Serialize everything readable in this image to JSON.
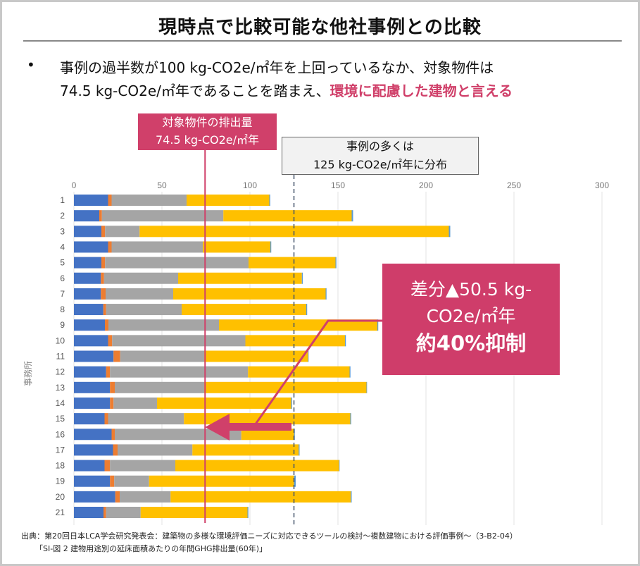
{
  "slide": {
    "title": "現時点で比較可能な他社事例との比較",
    "bullet_symbol": "•",
    "bullet_line1": "事例の過半数が100 kg-CO2e/㎡年を上回っているなか、対象物件は",
    "bullet_line2_plain": "74.5 kg-CO2e/㎡年であることを踏まえ、",
    "bullet_line2_highlight": "環境に配慮した建物と言える",
    "target_label_line1": "対象物件の排出量",
    "target_label_line2": "74.5 kg-CO2e/㎡年",
    "cases_label_line1": "事例の多くは",
    "cases_label_line2": "125 kg-CO2e/㎡年に分布",
    "diff_line1": "差分▲50.5 kg-",
    "diff_line2": "CO2e/㎡年",
    "diff_line3": "約40%抑制",
    "source_line1": "出典：第20回日本LCA学会研究発表会：建築物の多様な環境評価ニーズに対応できるツールの検討～複数建物における評価事例～（3-B2-04）",
    "source_line2": "「SI-図 2 建物用途別の延床面積あたりの年間GHG排出量(60年)」",
    "accent_color": "#d0406a"
  },
  "chart_data": {
    "type": "bar",
    "orientation": "horizontal",
    "stacked": true,
    "ylabel": "事務所",
    "xlim": [
      0,
      300
    ],
    "xticks": [
      0,
      50,
      100,
      150,
      200,
      250,
      300
    ],
    "grid": true,
    "categories": [
      "1",
      "2",
      "3",
      "4",
      "5",
      "6",
      "7",
      "8",
      "9",
      "10",
      "11",
      "12",
      "13",
      "14",
      "15",
      "16",
      "17",
      "18",
      "19",
      "20",
      "21"
    ],
    "series": [
      {
        "color": "#4472c4",
        "values": [
          19.4,
          14.4,
          15.6,
          19.4,
          15.6,
          15.3,
          15.3,
          16.7,
          17.6,
          19.4,
          22.5,
          18.3,
          20.5,
          20.5,
          17.4,
          21.4,
          22.2,
          17.4,
          20.5,
          23.5,
          16.8
        ]
      },
      {
        "color": "#ed7d31",
        "values": [
          2.0,
          1.5,
          2.1,
          2.0,
          2.1,
          1.8,
          2.7,
          1.6,
          2.0,
          2.3,
          3.8,
          2.2,
          2.7,
          2.0,
          2.0,
          1.8,
          2.6,
          3.1,
          2.4,
          2.5,
          1.5
        ]
      },
      {
        "color": "#a5a5a5",
        "values": [
          42.6,
          69.0,
          19.6,
          51.8,
          81.5,
          42.1,
          38.4,
          42.9,
          62.8,
          75.7,
          47.7,
          78.4,
          50.8,
          24.7,
          43.1,
          71.9,
          42.5,
          37.1,
          19.8,
          28.9,
          19.6
        ]
      },
      {
        "color": "#ffc000",
        "values": [
          47.0,
          72.9,
          175.7,
          38.4,
          49.4,
          70.3,
          86.6,
          70.8,
          90.0,
          56.6,
          59.0,
          57.7,
          92.2,
          76.2,
          94.5,
          29.9,
          60.4,
          93.0,
          82.3,
          102.4,
          60.7
        ]
      },
      {
        "color": "#5b9bd5",
        "values": [
          0.5,
          0.8,
          0.8,
          0.5,
          0.5,
          0.5,
          0.5,
          0.5,
          0.5,
          0.5,
          0.3,
          0.5,
          0.3,
          0.5,
          0.5,
          0.5,
          0.5,
          0.3,
          1.0,
          0.5,
          0.5
        ]
      }
    ],
    "reference_lines": [
      {
        "value": 74.5,
        "style": "solid",
        "color": "#d0406a"
      },
      {
        "value": 125,
        "style": "dashed",
        "color": "#44546a"
      }
    ]
  }
}
